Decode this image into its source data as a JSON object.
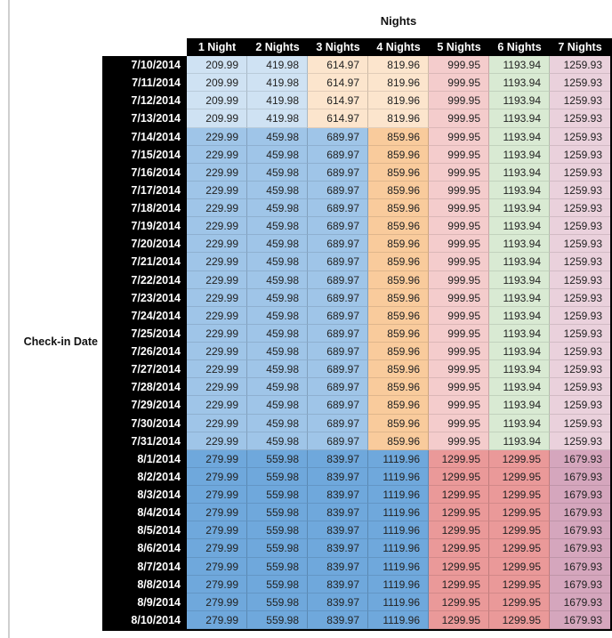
{
  "chart_data": {
    "type": "table",
    "title": "Nights",
    "row_axis_label": "Check-in Date",
    "columns": [
      "1 Night",
      "2 Nights",
      "3 Nights",
      "4 Nights",
      "5 Nights",
      "6 Nights",
      "7 Nights"
    ],
    "row_groups": [
      {
        "dates": [
          "7/10/2014",
          "7/11/2014",
          "7/12/2014",
          "7/13/2014"
        ],
        "values": [
          "209.99",
          "419.98",
          "614.97",
          "819.96",
          "999.95",
          "1193.94",
          "1259.93"
        ],
        "cell_colors": [
          "#CFE2F3",
          "#CFE2F3",
          "#FCE5CD",
          "#FCE5CD",
          "#F4CCCC",
          "#D9EAD3",
          "#EAD1DC"
        ]
      },
      {
        "dates": [
          "7/14/2014",
          "7/15/2014",
          "7/16/2014",
          "7/17/2014",
          "7/18/2014",
          "7/19/2014",
          "7/20/2014",
          "7/21/2014",
          "7/22/2014",
          "7/23/2014",
          "7/24/2014",
          "7/25/2014",
          "7/26/2014",
          "7/27/2014",
          "7/28/2014",
          "7/29/2014",
          "7/30/2014",
          "7/31/2014"
        ],
        "values": [
          "229.99",
          "459.98",
          "689.97",
          "859.96",
          "999.95",
          "1193.94",
          "1259.93"
        ],
        "cell_colors": [
          "#9FC5E8",
          "#9FC5E8",
          "#9FC5E8",
          "#F9CB9C",
          "#F4CCCC",
          "#D9EAD3",
          "#EAD1DC"
        ]
      },
      {
        "dates": [
          "8/1/2014",
          "8/2/2014",
          "8/3/2014",
          "8/4/2014",
          "8/5/2014",
          "8/6/2014",
          "8/7/2014",
          "8/8/2014",
          "8/9/2014",
          "8/10/2014"
        ],
        "values": [
          "279.99",
          "559.98",
          "839.97",
          "1119.96",
          "1299.95",
          "1299.95",
          "1679.93"
        ],
        "cell_colors": [
          "#6FA8DC",
          "#6FA8DC",
          "#6FA8DC",
          "#6FA8DC",
          "#EA9999",
          "#EA9999",
          "#D5A6BD"
        ]
      }
    ],
    "styles": {
      "header_bg": "#000000",
      "header_text": "#FFFFFF",
      "date_col_bg": "#000000",
      "date_col_text": "#FFFFFF",
      "value_text": "#222222",
      "left_rule_color": "#CFCFCF",
      "background": "#FFFFFF"
    }
  }
}
